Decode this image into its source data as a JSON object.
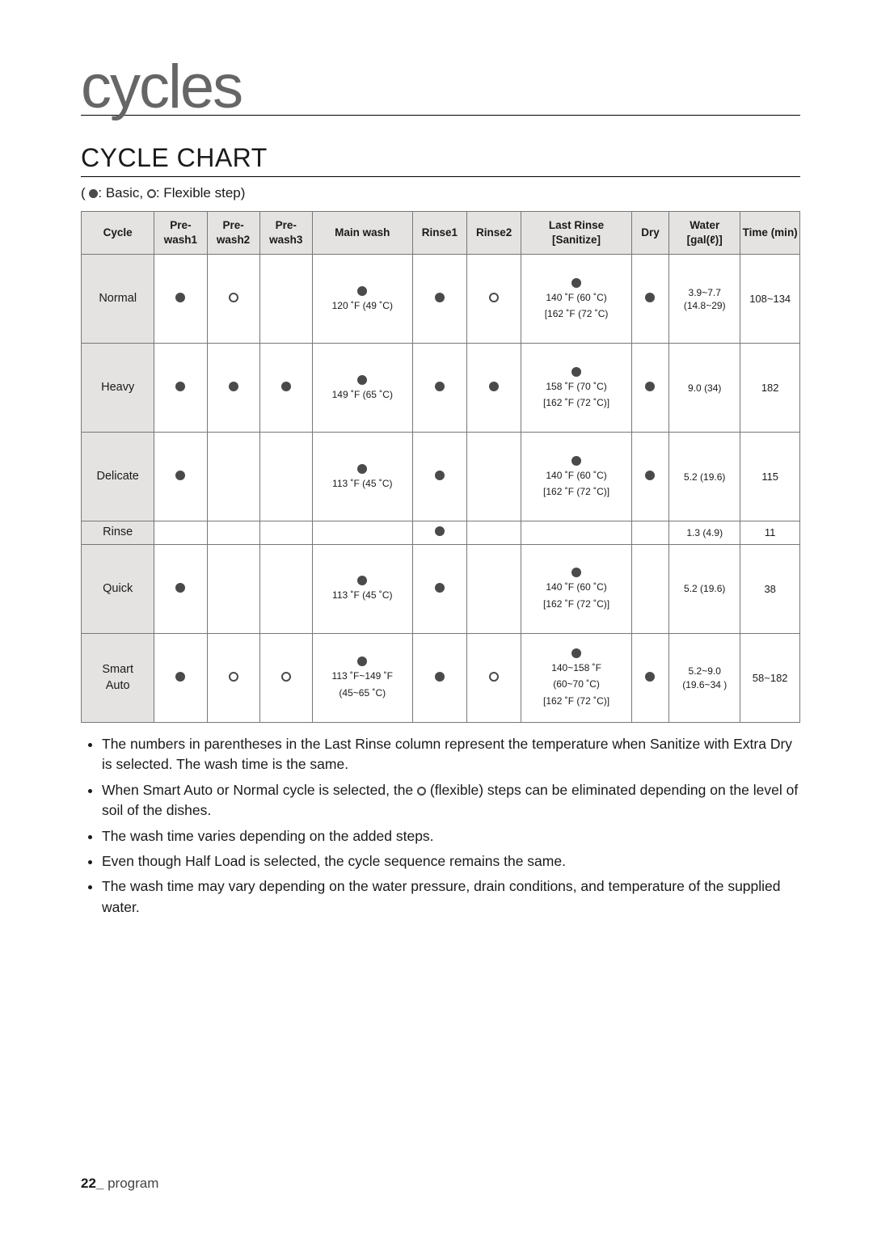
{
  "brand": "cycles",
  "section_title": "CYCLE CHART",
  "legend_prefix": "( ",
  "legend_basic": ": Basic, ",
  "legend_flex": ": Flexible step)",
  "headers": {
    "cycle": "Cycle",
    "pre1": "Pre-wash1",
    "pre2": "Pre-wash2",
    "pre3": "Pre-wash3",
    "main": "Main wash",
    "r1": "Rinse1",
    "r2": "Rinse2",
    "last": "Last Rinse [Sanitize]",
    "dry": "Dry",
    "water": "Water [gal(ℓ)]",
    "time": "Time (min)"
  },
  "col_widths": [
    "86",
    "62",
    "62",
    "62",
    "118",
    "64",
    "64",
    "130",
    "44",
    "84",
    "70"
  ],
  "rows": [
    {
      "name": "Normal",
      "pre1": "filled",
      "pre2": "open",
      "pre3": "",
      "main_dot": "filled",
      "main_sub": "120 ˚F (49 ˚C)",
      "r1": "filled",
      "r2": "open",
      "last_dot": "filled",
      "last_sub": "140 ˚F (60 ˚C)\n[162 ˚F (72 ˚C)",
      "dry": "filled",
      "water": "3.9~7.7\n(14.8~29)",
      "time": "108~134",
      "row_class": "body-row"
    },
    {
      "name": "Heavy",
      "pre1": "filled",
      "pre2": "filled",
      "pre3": "filled",
      "main_dot": "filled",
      "main_sub": "149 ˚F (65 ˚C)",
      "r1": "filled",
      "r2": "filled",
      "last_dot": "filled",
      "last_sub": "158 ˚F (70 ˚C)\n[162 ˚F (72 ˚C)]",
      "dry": "filled",
      "water": "9.0 (34)",
      "time": "182",
      "row_class": "body-row"
    },
    {
      "name": "Delicate",
      "pre1": "filled",
      "pre2": "",
      "pre3": "",
      "main_dot": "filled",
      "main_sub": "113 ˚F (45 ˚C)",
      "r1": "filled",
      "r2": "",
      "last_dot": "filled",
      "last_sub": "140 ˚F (60 ˚C)\n[162 ˚F (72 ˚C)]",
      "dry": "filled",
      "water": "5.2 (19.6)",
      "time": "115",
      "row_class": "body-row"
    },
    {
      "name": "Rinse",
      "pre1": "",
      "pre2": "",
      "pre3": "",
      "main_dot": "",
      "main_sub": "",
      "r1": "filled",
      "r2": "",
      "last_dot": "",
      "last_sub": "",
      "dry": "",
      "water": "1.3 (4.9)",
      "time": "11",
      "row_class": "rinse-row"
    },
    {
      "name": "Quick",
      "pre1": "filled",
      "pre2": "",
      "pre3": "",
      "main_dot": "filled",
      "main_sub": "113 ˚F (45 ˚C)",
      "r1": "filled",
      "r2": "",
      "last_dot": "filled",
      "last_sub": "140 ˚F (60 ˚C)\n[162 ˚F (72 ˚C)]",
      "dry": "",
      "water": "5.2 (19.6)",
      "time": "38",
      "row_class": "body-row"
    },
    {
      "name": "Smart\nAuto",
      "pre1": "filled",
      "pre2": "open",
      "pre3": "open",
      "main_dot": "filled",
      "main_sub": "113 ˚F~149 ˚F\n(45~65 ˚C)",
      "r1": "filled",
      "r2": "open",
      "last_dot": "filled",
      "last_sub": "140~158 ˚F\n(60~70 ˚C)\n[162 ˚F (72 ˚C)]",
      "dry": "filled",
      "water": "5.2~9.0\n(19.6~34 )",
      "time": "58~182",
      "row_class": "body-row"
    }
  ],
  "notes": [
    "The numbers in parentheses in the Last Rinse column represent the temperature when Sanitize with Extra Dry is selected. The wash time is the same.",
    "When Smart Auto or Normal cycle is selected, the {OPEN} (flexible) steps can be eliminated depending on the level of soil of the dishes.",
    "The wash time varies depending on the added steps.",
    "Even though Half Load is selected, the cycle sequence remains the same.",
    "The wash time may vary depending on the water pressure, drain conditions, and temperature of the supplied water."
  ],
  "footer_page": "22_",
  "footer_label": " program"
}
